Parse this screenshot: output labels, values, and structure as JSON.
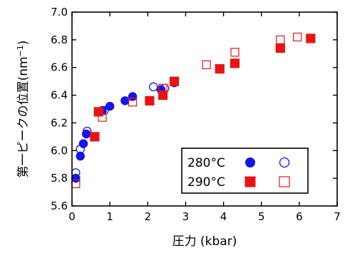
{
  "chart_data": {
    "type": "scatter",
    "title": "",
    "xlabel": "圧力 (kbar)",
    "ylabel": "第一ピークの位置(nm",
    "ylabel_sup": "−1",
    "ylabel_close": ")",
    "xlim": [
      0,
      7
    ],
    "ylim": [
      5.6,
      7.0
    ],
    "xticks": [
      "0",
      "1",
      "2",
      "3",
      "4",
      "5",
      "6",
      "7"
    ],
    "yticks": [
      "5.6",
      "5.8",
      "6.0",
      "6.2",
      "6.4",
      "6.6",
      "6.8",
      "7.0"
    ],
    "grid": false,
    "legend_position": "bottom-right",
    "legend_rows": [
      "280°C",
      "290°C"
    ],
    "series": [
      {
        "temperature": "280°C",
        "marker": "circle",
        "filled": true,
        "color": "#1515e6",
        "points": [
          [
            0.1,
            5.8
          ],
          [
            0.22,
            5.96
          ],
          [
            0.3,
            6.05
          ],
          [
            0.38,
            6.12
          ],
          [
            0.8,
            6.29
          ],
          [
            1.0,
            6.32
          ],
          [
            1.4,
            6.36
          ],
          [
            1.6,
            6.39
          ],
          [
            2.35,
            6.44
          ],
          [
            2.7,
            6.49
          ]
        ]
      },
      {
        "temperature": "280°C",
        "marker": "circle",
        "filled": false,
        "color": "#1515e6",
        "points": [
          [
            0.1,
            5.84
          ],
          [
            0.22,
            6.01
          ],
          [
            0.4,
            6.14
          ],
          [
            0.85,
            6.29
          ],
          [
            2.15,
            6.46
          ],
          [
            2.45,
            6.45
          ]
        ]
      },
      {
        "temperature": "290°C",
        "marker": "square",
        "filled": true,
        "color": "#e81414",
        "points": [
          [
            0.6,
            6.1
          ],
          [
            0.7,
            6.28
          ],
          [
            2.05,
            6.36
          ],
          [
            2.4,
            6.4
          ],
          [
            2.7,
            6.5
          ],
          [
            3.9,
            6.59
          ],
          [
            4.3,
            6.63
          ],
          [
            5.5,
            6.74
          ],
          [
            6.3,
            6.81
          ]
        ]
      },
      {
        "temperature": "290°C",
        "marker": "square",
        "filled": false,
        "color": "#e81414",
        "points": [
          [
            0.1,
            5.76
          ],
          [
            0.8,
            6.24
          ],
          [
            1.6,
            6.35
          ],
          [
            2.4,
            6.45
          ],
          [
            3.55,
            6.62
          ],
          [
            4.3,
            6.71
          ],
          [
            5.5,
            6.8
          ],
          [
            5.95,
            6.82
          ]
        ]
      }
    ]
  }
}
